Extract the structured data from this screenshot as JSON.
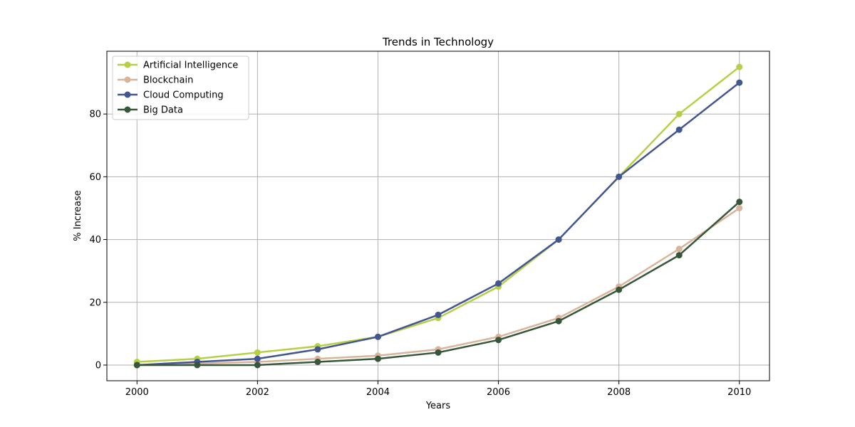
{
  "chart_data": {
    "type": "line",
    "title": "Trends in Technology",
    "xlabel": "Years",
    "ylabel": "% Increase",
    "x": [
      2000,
      2001,
      2002,
      2003,
      2004,
      2005,
      2006,
      2007,
      2008,
      2009,
      2010
    ],
    "xlim": [
      1999.5,
      2010.5
    ],
    "ylim": [
      -5,
      100
    ],
    "xticks": [
      2000,
      2002,
      2004,
      2006,
      2008,
      2010
    ],
    "yticks": [
      0,
      20,
      40,
      60,
      80
    ],
    "grid": true,
    "legend_position": "top-left",
    "series": [
      {
        "name": "Artificial Intelligence",
        "color": "#b5d045",
        "values": [
          1,
          2,
          4,
          6,
          9,
          15,
          25,
          40,
          60,
          80,
          95
        ]
      },
      {
        "name": "Blockchain",
        "color": "#d8b59a",
        "values": [
          0,
          0.5,
          1,
          2,
          3,
          5,
          9,
          15,
          25,
          37,
          50
        ]
      },
      {
        "name": "Cloud Computing",
        "color": "#43568f",
        "values": [
          0,
          1,
          2,
          5,
          9,
          16,
          26,
          40,
          60,
          75,
          90
        ]
      },
      {
        "name": "Big Data",
        "color": "#38573a",
        "values": [
          0,
          0,
          0,
          1,
          2,
          4,
          8,
          14,
          24,
          35,
          52
        ]
      }
    ]
  }
}
